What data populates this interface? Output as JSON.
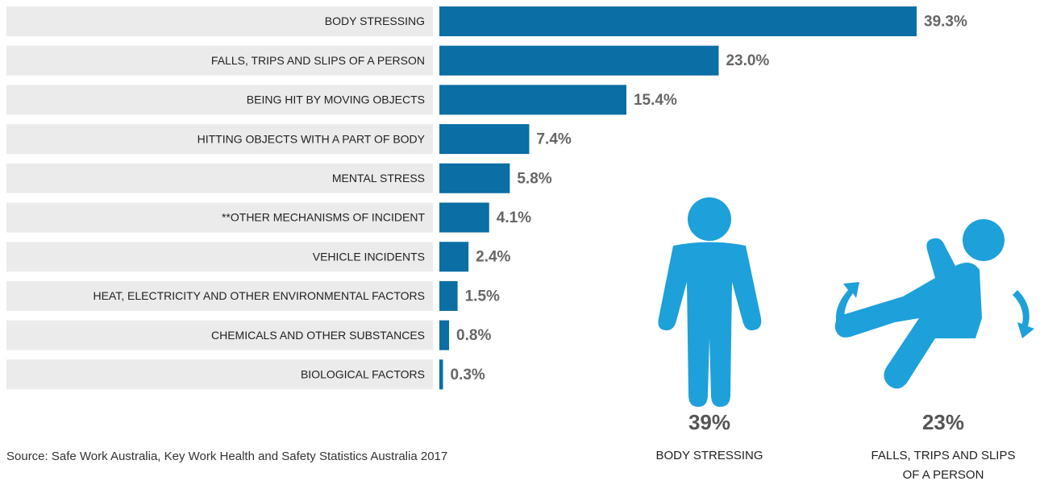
{
  "chart_data": {
    "type": "bar",
    "categories": [
      "BODY STRESSING",
      "FALLS, TRIPS AND SLIPS OF A PERSON",
      "BEING HIT BY MOVING OBJECTS",
      "HITTING OBJECTS WITH A PART OF BODY",
      "MENTAL STRESS",
      "**OTHER MECHANISMS OF INCIDENT",
      "VEHICLE INCIDENTS",
      "HEAT, ELECTRICITY AND OTHER ENVIRONMENTAL FACTORS",
      "CHEMICALS AND OTHER SUBSTANCES",
      "BIOLOGICAL FACTORS"
    ],
    "values": [
      39.3,
      23.0,
      15.4,
      7.4,
      5.8,
      4.1,
      2.4,
      1.5,
      0.8,
      0.3
    ],
    "value_labels": [
      "39.3%",
      "23.0%",
      "15.4%",
      "7.4%",
      "5.8%",
      "4.1%",
      "2.4%",
      "1.5%",
      "0.8%",
      "0.3%"
    ],
    "color": "#0b6ea4"
  },
  "highlights": [
    {
      "figure": "39%",
      "lines": [
        "BODY STRESSING"
      ]
    },
    {
      "figure": "23%",
      "lines": [
        "FALLS, TRIPS AND SLIPS",
        "OF A PERSON"
      ]
    }
  ],
  "source": "Source: Safe Work Australia, Key Work Health and Safety Statistics Australia 2017"
}
